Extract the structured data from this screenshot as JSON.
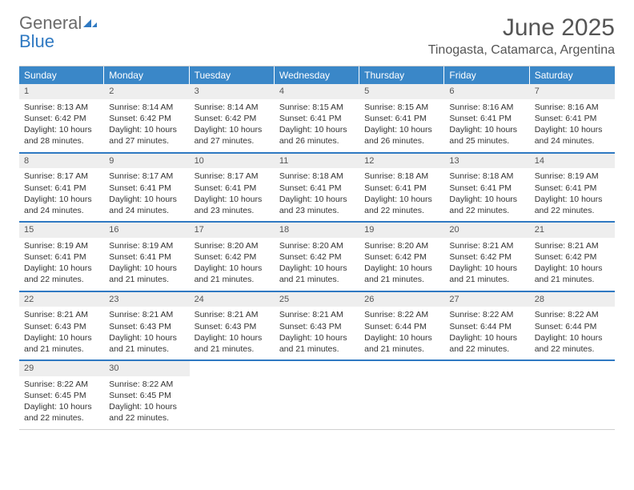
{
  "logo": {
    "text1": "General",
    "text2": "Blue"
  },
  "title": "June 2025",
  "location": "Tinogasta, Catamarca, Argentina",
  "colors": {
    "header_bg": "#3a87c8",
    "header_text": "#ffffff",
    "week_divider": "#2f79c2",
    "daynum_bg": "#eeeeee",
    "logo_gray": "#6a6a6a",
    "logo_blue": "#2f79c2",
    "title_color": "#555555"
  },
  "weekdays": [
    "Sunday",
    "Monday",
    "Tuesday",
    "Wednesday",
    "Thursday",
    "Friday",
    "Saturday"
  ],
  "weeks": [
    [
      {
        "num": "1",
        "sunrise": "Sunrise: 8:13 AM",
        "sunset": "Sunset: 6:42 PM",
        "daylight1": "Daylight: 10 hours",
        "daylight2": "and 28 minutes."
      },
      {
        "num": "2",
        "sunrise": "Sunrise: 8:14 AM",
        "sunset": "Sunset: 6:42 PM",
        "daylight1": "Daylight: 10 hours",
        "daylight2": "and 27 minutes."
      },
      {
        "num": "3",
        "sunrise": "Sunrise: 8:14 AM",
        "sunset": "Sunset: 6:42 PM",
        "daylight1": "Daylight: 10 hours",
        "daylight2": "and 27 minutes."
      },
      {
        "num": "4",
        "sunrise": "Sunrise: 8:15 AM",
        "sunset": "Sunset: 6:41 PM",
        "daylight1": "Daylight: 10 hours",
        "daylight2": "and 26 minutes."
      },
      {
        "num": "5",
        "sunrise": "Sunrise: 8:15 AM",
        "sunset": "Sunset: 6:41 PM",
        "daylight1": "Daylight: 10 hours",
        "daylight2": "and 26 minutes."
      },
      {
        "num": "6",
        "sunrise": "Sunrise: 8:16 AM",
        "sunset": "Sunset: 6:41 PM",
        "daylight1": "Daylight: 10 hours",
        "daylight2": "and 25 minutes."
      },
      {
        "num": "7",
        "sunrise": "Sunrise: 8:16 AM",
        "sunset": "Sunset: 6:41 PM",
        "daylight1": "Daylight: 10 hours",
        "daylight2": "and 24 minutes."
      }
    ],
    [
      {
        "num": "8",
        "sunrise": "Sunrise: 8:17 AM",
        "sunset": "Sunset: 6:41 PM",
        "daylight1": "Daylight: 10 hours",
        "daylight2": "and 24 minutes."
      },
      {
        "num": "9",
        "sunrise": "Sunrise: 8:17 AM",
        "sunset": "Sunset: 6:41 PM",
        "daylight1": "Daylight: 10 hours",
        "daylight2": "and 24 minutes."
      },
      {
        "num": "10",
        "sunrise": "Sunrise: 8:17 AM",
        "sunset": "Sunset: 6:41 PM",
        "daylight1": "Daylight: 10 hours",
        "daylight2": "and 23 minutes."
      },
      {
        "num": "11",
        "sunrise": "Sunrise: 8:18 AM",
        "sunset": "Sunset: 6:41 PM",
        "daylight1": "Daylight: 10 hours",
        "daylight2": "and 23 minutes."
      },
      {
        "num": "12",
        "sunrise": "Sunrise: 8:18 AM",
        "sunset": "Sunset: 6:41 PM",
        "daylight1": "Daylight: 10 hours",
        "daylight2": "and 22 minutes."
      },
      {
        "num": "13",
        "sunrise": "Sunrise: 8:18 AM",
        "sunset": "Sunset: 6:41 PM",
        "daylight1": "Daylight: 10 hours",
        "daylight2": "and 22 minutes."
      },
      {
        "num": "14",
        "sunrise": "Sunrise: 8:19 AM",
        "sunset": "Sunset: 6:41 PM",
        "daylight1": "Daylight: 10 hours",
        "daylight2": "and 22 minutes."
      }
    ],
    [
      {
        "num": "15",
        "sunrise": "Sunrise: 8:19 AM",
        "sunset": "Sunset: 6:41 PM",
        "daylight1": "Daylight: 10 hours",
        "daylight2": "and 22 minutes."
      },
      {
        "num": "16",
        "sunrise": "Sunrise: 8:19 AM",
        "sunset": "Sunset: 6:41 PM",
        "daylight1": "Daylight: 10 hours",
        "daylight2": "and 21 minutes."
      },
      {
        "num": "17",
        "sunrise": "Sunrise: 8:20 AM",
        "sunset": "Sunset: 6:42 PM",
        "daylight1": "Daylight: 10 hours",
        "daylight2": "and 21 minutes."
      },
      {
        "num": "18",
        "sunrise": "Sunrise: 8:20 AM",
        "sunset": "Sunset: 6:42 PM",
        "daylight1": "Daylight: 10 hours",
        "daylight2": "and 21 minutes."
      },
      {
        "num": "19",
        "sunrise": "Sunrise: 8:20 AM",
        "sunset": "Sunset: 6:42 PM",
        "daylight1": "Daylight: 10 hours",
        "daylight2": "and 21 minutes."
      },
      {
        "num": "20",
        "sunrise": "Sunrise: 8:21 AM",
        "sunset": "Sunset: 6:42 PM",
        "daylight1": "Daylight: 10 hours",
        "daylight2": "and 21 minutes."
      },
      {
        "num": "21",
        "sunrise": "Sunrise: 8:21 AM",
        "sunset": "Sunset: 6:42 PM",
        "daylight1": "Daylight: 10 hours",
        "daylight2": "and 21 minutes."
      }
    ],
    [
      {
        "num": "22",
        "sunrise": "Sunrise: 8:21 AM",
        "sunset": "Sunset: 6:43 PM",
        "daylight1": "Daylight: 10 hours",
        "daylight2": "and 21 minutes."
      },
      {
        "num": "23",
        "sunrise": "Sunrise: 8:21 AM",
        "sunset": "Sunset: 6:43 PM",
        "daylight1": "Daylight: 10 hours",
        "daylight2": "and 21 minutes."
      },
      {
        "num": "24",
        "sunrise": "Sunrise: 8:21 AM",
        "sunset": "Sunset: 6:43 PM",
        "daylight1": "Daylight: 10 hours",
        "daylight2": "and 21 minutes."
      },
      {
        "num": "25",
        "sunrise": "Sunrise: 8:21 AM",
        "sunset": "Sunset: 6:43 PM",
        "daylight1": "Daylight: 10 hours",
        "daylight2": "and 21 minutes."
      },
      {
        "num": "26",
        "sunrise": "Sunrise: 8:22 AM",
        "sunset": "Sunset: 6:44 PM",
        "daylight1": "Daylight: 10 hours",
        "daylight2": "and 21 minutes."
      },
      {
        "num": "27",
        "sunrise": "Sunrise: 8:22 AM",
        "sunset": "Sunset: 6:44 PM",
        "daylight1": "Daylight: 10 hours",
        "daylight2": "and 22 minutes."
      },
      {
        "num": "28",
        "sunrise": "Sunrise: 8:22 AM",
        "sunset": "Sunset: 6:44 PM",
        "daylight1": "Daylight: 10 hours",
        "daylight2": "and 22 minutes."
      }
    ],
    [
      {
        "num": "29",
        "sunrise": "Sunrise: 8:22 AM",
        "sunset": "Sunset: 6:45 PM",
        "daylight1": "Daylight: 10 hours",
        "daylight2": "and 22 minutes."
      },
      {
        "num": "30",
        "sunrise": "Sunrise: 8:22 AM",
        "sunset": "Sunset: 6:45 PM",
        "daylight1": "Daylight: 10 hours",
        "daylight2": "and 22 minutes."
      },
      {
        "empty": true
      },
      {
        "empty": true
      },
      {
        "empty": true
      },
      {
        "empty": true
      },
      {
        "empty": true
      }
    ]
  ]
}
